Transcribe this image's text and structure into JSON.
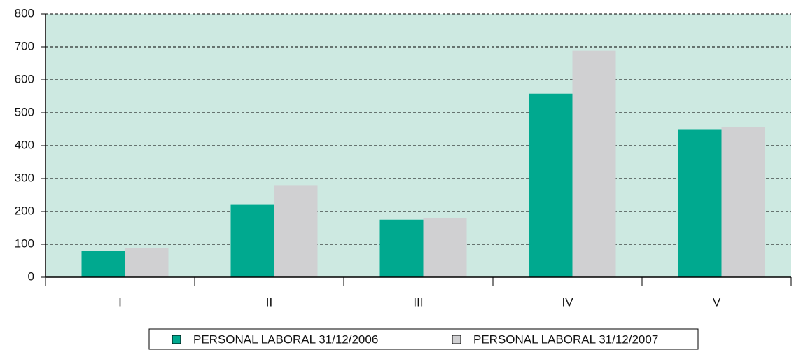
{
  "chart_data": {
    "type": "bar",
    "categories": [
      "I",
      "II",
      "III",
      "IV",
      "V"
    ],
    "series": [
      {
        "name": "PERSONAL LABORAL 31/12/2006",
        "color": "#00a98f",
        "values": [
          80,
          220,
          175,
          558,
          450
        ]
      },
      {
        "name": "PERSONAL LABORAL 31/12/2007",
        "color": "#d0d0d2",
        "values": [
          88,
          280,
          180,
          688,
          457
        ]
      }
    ],
    "ylim": [
      0,
      800
    ],
    "yticks": [
      0,
      100,
      200,
      300,
      400,
      500,
      600,
      700,
      800
    ],
    "grid": true,
    "plot_background": "#cde9e1",
    "legend": "bottom"
  }
}
